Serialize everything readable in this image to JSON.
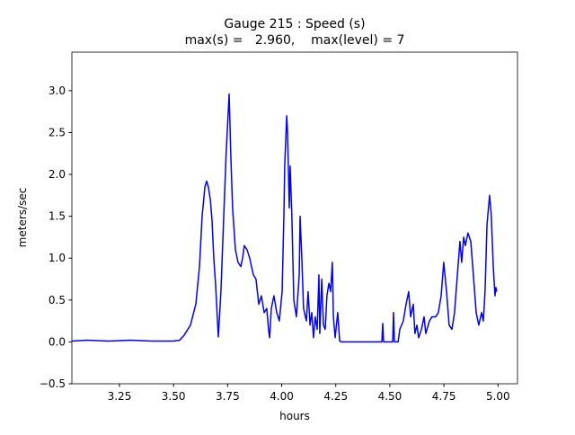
{
  "chart_data": {
    "type": "line",
    "title": "Gauge 215 : Speed (s)",
    "subtitle": "max(s) =   2.960,    max(level) = 7",
    "x_label": "hours",
    "y_label": "meters/sec",
    "xlim": [
      3.03,
      5.09
    ],
    "ylim": [
      -0.5,
      3.46
    ],
    "xticks": [
      3.25,
      {
        "value": 3.5,
        "label": "3.50"
      },
      3.75,
      {
        "value": 4.0,
        "label": "4.00"
      },
      4.25,
      {
        "value": 4.5,
        "label": "4.50"
      },
      4.75,
      {
        "value": 5.0,
        "label": "5.00"
      }
    ],
    "yticks": [
      {
        "value": -0.5,
        "label": "−0.5"
      },
      {
        "value": 0,
        "label": "0.0"
      },
      {
        "value": 0.5,
        "label": "0.5"
      },
      {
        "value": 1,
        "label": "1.0"
      },
      {
        "value": 1.5,
        "label": "1.5"
      },
      {
        "value": 2,
        "label": "2.0"
      },
      {
        "value": 2.5,
        "label": "2.5"
      },
      {
        "value": 3,
        "label": "3.0"
      }
    ],
    "x": [
      3.03,
      3.1,
      3.2,
      3.3,
      3.4,
      3.5,
      3.528,
      3.549,
      3.578,
      3.603,
      3.62,
      3.632,
      3.645,
      3.653,
      3.661,
      3.67,
      3.678,
      3.686,
      3.694,
      3.707,
      3.719,
      3.732,
      3.744,
      3.757,
      3.765,
      3.773,
      3.786,
      3.798,
      3.811,
      3.819,
      3.827,
      3.84,
      3.852,
      3.869,
      3.881,
      3.894,
      3.906,
      3.919,
      3.931,
      3.939,
      3.944,
      3.952,
      3.964,
      3.977,
      3.989,
      4.002,
      4.01,
      4.014,
      4.023,
      4.027,
      4.035,
      4.039,
      4.047,
      4.056,
      4.068,
      4.081,
      4.085,
      4.093,
      4.101,
      4.114,
      4.122,
      4.131,
      4.139,
      4.147,
      4.155,
      4.164,
      4.172,
      4.176,
      4.185,
      4.193,
      4.201,
      4.209,
      4.218,
      4.226,
      4.234,
      4.239,
      4.247,
      4.259,
      4.268,
      4.276,
      4.463,
      4.467,
      4.471,
      4.513,
      4.517,
      4.521,
      4.538,
      4.546,
      4.562,
      4.575,
      4.587,
      4.596,
      4.608,
      4.616,
      4.625,
      4.633,
      4.646,
      4.658,
      4.666,
      4.683,
      4.695,
      4.712,
      4.724,
      4.737,
      4.749,
      4.762,
      4.774,
      4.787,
      4.799,
      4.812,
      4.824,
      4.832,
      4.841,
      4.849,
      4.861,
      4.874,
      4.886,
      4.899,
      4.911,
      4.924,
      4.932,
      4.94,
      4.949,
      4.961,
      4.969,
      4.978,
      4.986,
      4.99,
      4.994
    ],
    "series": [
      {
        "color": "#0000ff",
        "values": [
          0.01,
          0.02,
          0.01,
          0.02,
          0.01,
          0.01,
          0.02,
          0.08,
          0.2,
          0.45,
          0.9,
          1.5,
          1.85,
          1.92,
          1.85,
          1.7,
          1.45,
          1.0,
          0.7,
          0.06,
          0.6,
          1.5,
          2.3,
          2.96,
          2.2,
          1.6,
          1.1,
          0.95,
          0.9,
          1.0,
          1.15,
          1.1,
          1.0,
          0.8,
          0.75,
          0.45,
          0.55,
          0.35,
          0.4,
          0.15,
          0.05,
          0.4,
          0.55,
          0.35,
          0.25,
          0.6,
          1.5,
          2.1,
          2.7,
          2.5,
          1.6,
          2.1,
          1.5,
          0.5,
          0.3,
          0.8,
          1.5,
          1.0,
          0.4,
          0.25,
          0.6,
          0.2,
          0.35,
          0.05,
          0.3,
          0.15,
          0.8,
          0.1,
          0.75,
          0.2,
          0.15,
          0.55,
          0.7,
          0.6,
          0.95,
          0.3,
          0.05,
          0.35,
          0.01,
          0.0,
          0.0,
          0.22,
          0.0,
          0.0,
          0.35,
          0.0,
          0.0,
          0.15,
          0.25,
          0.45,
          0.6,
          0.3,
          0.45,
          0.1,
          0.2,
          0.05,
          0.15,
          0.3,
          0.1,
          0.25,
          0.3,
          0.3,
          0.35,
          0.55,
          0.95,
          0.6,
          0.2,
          0.15,
          0.35,
          0.8,
          1.2,
          0.95,
          1.25,
          1.15,
          1.3,
          1.2,
          0.8,
          0.35,
          0.2,
          0.35,
          0.25,
          0.6,
          1.4,
          1.75,
          1.5,
          0.9,
          0.55,
          0.65,
          0.6
        ]
      }
    ]
  }
}
